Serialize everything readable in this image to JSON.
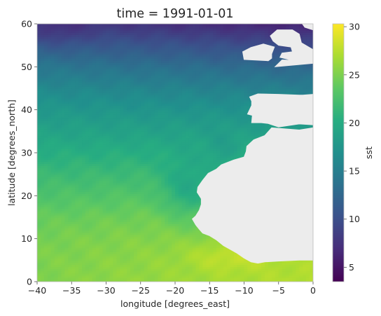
{
  "chart_data": {
    "type": "heatmap",
    "title": "time = 1991-01-01",
    "xlabel": "longitude [degrees_east]",
    "ylabel": "latitude [degrees_north]",
    "colorbar_label": "sst",
    "colormap": "viridis",
    "xlim": [
      -40,
      0
    ],
    "ylim": [
      0,
      60
    ],
    "clim": [
      3.5,
      30.3
    ],
    "x_ticks": [
      -40,
      -35,
      -30,
      -25,
      -20,
      -15,
      -10,
      -5,
      0
    ],
    "x_tick_labels": [
      "−40",
      "−35",
      "−30",
      "−25",
      "−20",
      "−15",
      "−10",
      "−5",
      "0"
    ],
    "y_ticks": [
      0,
      10,
      20,
      30,
      40,
      50,
      60
    ],
    "y_tick_labels": [
      "0",
      "10",
      "20",
      "30",
      "40",
      "50",
      "60"
    ],
    "colorbar_ticks": [
      5,
      10,
      15,
      20,
      25,
      30
    ],
    "colorbar_tick_labels": [
      "5",
      "10",
      "15",
      "20",
      "25",
      "30"
    ],
    "missing_value_color": "#ececec",
    "lat_profile_sst": [
      [
        0,
        27.5
      ],
      [
        5,
        27.0
      ],
      [
        10,
        26.3
      ],
      [
        15,
        25.2
      ],
      [
        20,
        23.6
      ],
      [
        25,
        22.0
      ],
      [
        30,
        20.3
      ],
      [
        35,
        18.6
      ],
      [
        40,
        17.0
      ],
      [
        45,
        15.0
      ],
      [
        50,
        12.6
      ],
      [
        55,
        9.5
      ],
      [
        60,
        6.0
      ]
    ],
    "land_regions": [
      {
        "name": "Africa",
        "boundary_lon_lat": [
          [
            0,
            5
          ],
          [
            -2,
            5
          ],
          [
            -5,
            4.8
          ],
          [
            -7,
            4.6
          ],
          [
            -8,
            4.3
          ],
          [
            -9,
            4.6
          ],
          [
            -10,
            5.5
          ],
          [
            -11,
            6.6
          ],
          [
            -12,
            7.5
          ],
          [
            -13,
            8.4
          ],
          [
            -14,
            9.7
          ],
          [
            -15,
            10.7
          ],
          [
            -16,
            11.3
          ],
          [
            -16.5,
            12.2
          ],
          [
            -17,
            13.2
          ],
          [
            -17.5,
            14.6
          ],
          [
            -17,
            15.3
          ],
          [
            -16.5,
            16.6
          ],
          [
            -16.2,
            18.0
          ],
          [
            -16.2,
            19.3
          ],
          [
            -16.8,
            20.8
          ],
          [
            -16.7,
            22.0
          ],
          [
            -16.0,
            23.6
          ],
          [
            -15.2,
            25.2
          ],
          [
            -14.0,
            26.2
          ],
          [
            -13.3,
            27.2
          ],
          [
            -11.5,
            28.3
          ],
          [
            -10.0,
            29.0
          ],
          [
            -9.7,
            30.3
          ],
          [
            -9.6,
            31.5
          ],
          [
            -8.6,
            33.0
          ],
          [
            -7.0,
            34.0
          ],
          [
            -6.0,
            35.8
          ],
          [
            -2,
            35.3
          ],
          [
            0,
            35.8
          ]
        ]
      },
      {
        "name": "Iberia",
        "boundary_lon_lat": [
          [
            0,
            36.5
          ],
          [
            -2,
            36.7
          ],
          [
            -5,
            36.0
          ],
          [
            -6.5,
            36.8
          ],
          [
            -7.5,
            37.0
          ],
          [
            -8.9,
            37.0
          ],
          [
            -8.8,
            38.7
          ],
          [
            -9.5,
            39.0
          ],
          [
            -8.9,
            41.0
          ],
          [
            -8.9,
            42.0
          ],
          [
            -9.2,
            43.0
          ],
          [
            -8.0,
            43.7
          ],
          [
            -5,
            43.6
          ],
          [
            -2,
            43.4
          ],
          [
            -1.5,
            43.4
          ],
          [
            0,
            43.6
          ]
        ]
      },
      {
        "name": "Ireland",
        "boundary_lon_lat": [
          [
            -6.0,
            52.0
          ],
          [
            -6.5,
            51.4
          ],
          [
            -10.0,
            51.7
          ],
          [
            -10.2,
            53.5
          ],
          [
            -9.0,
            54.5
          ],
          [
            -7.2,
            55.3
          ],
          [
            -5.6,
            54.6
          ],
          [
            -6.0,
            53.0
          ]
        ]
      },
      {
        "name": "Great Britain",
        "boundary_lon_lat": [
          [
            0,
            50.8
          ],
          [
            -5.5,
            50.0
          ],
          [
            -4.5,
            51.6
          ],
          [
            -3,
            51.5
          ],
          [
            -4.8,
            52.2
          ],
          [
            -4.5,
            53.2
          ],
          [
            -3,
            53.5
          ],
          [
            -3.2,
            54.6
          ],
          [
            -5.0,
            55.0
          ],
          [
            -5.8,
            56.0
          ],
          [
            -6.2,
            57.2
          ],
          [
            -5.2,
            58.6
          ],
          [
            -3.0,
            58.6
          ],
          [
            -2.0,
            57.6
          ],
          [
            -1.7,
            55.6
          ],
          [
            0,
            54.0
          ]
        ]
      },
      {
        "name": "Norway",
        "boundary_lon_lat": [
          [
            0,
            58.6
          ],
          [
            -1.2,
            59.2
          ],
          [
            -2,
            61
          ],
          [
            0,
            61
          ]
        ]
      }
    ]
  }
}
